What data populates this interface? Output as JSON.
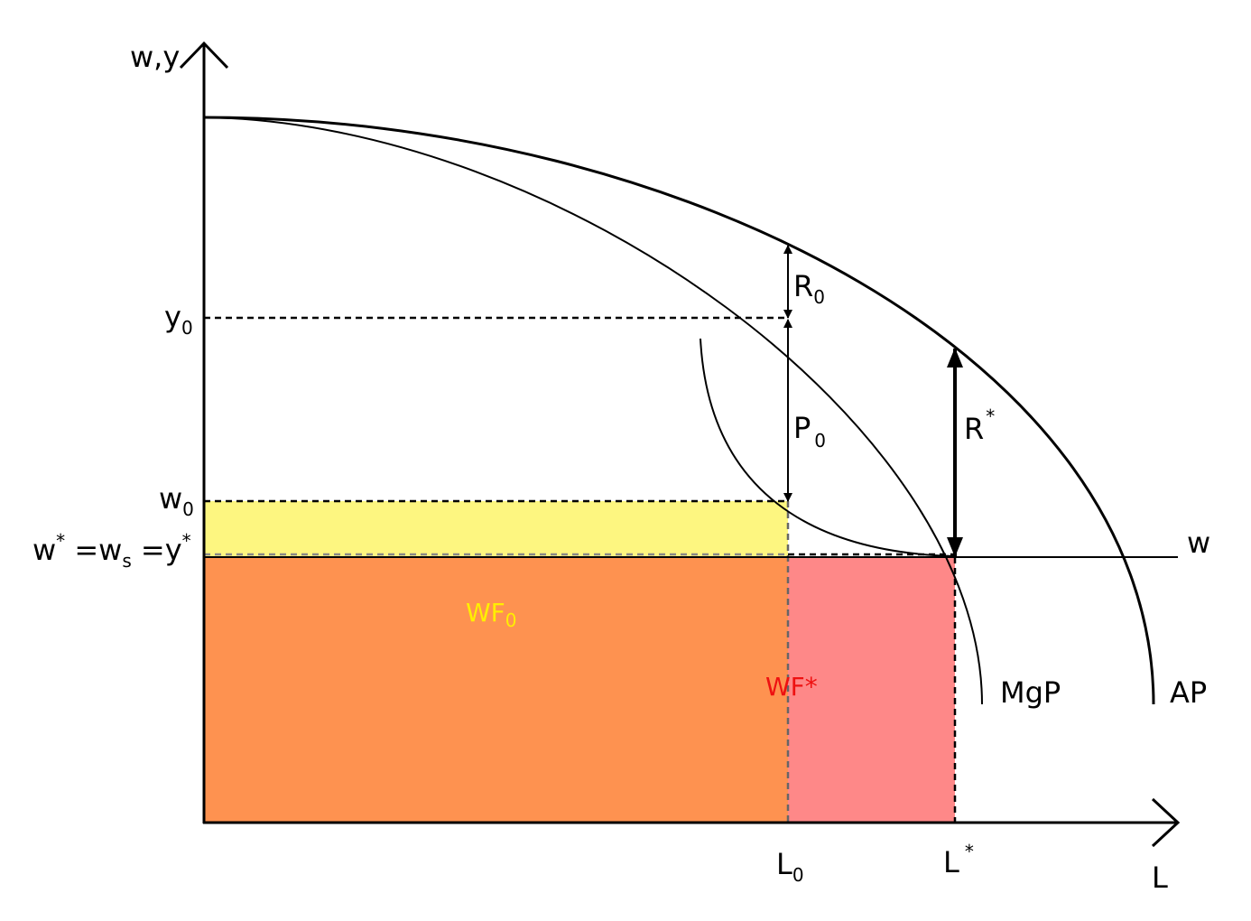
{
  "colors": {
    "wf0_band": "#fdf680",
    "wf_common": "#fe9250",
    "wf_star_extra": "#fe8888",
    "wf0_label": "#ffee00",
    "wfstar_label": "#ee1111"
  },
  "axes": {
    "y_label": "w,y",
    "x_label": "L"
  },
  "y_ticks": {
    "y0": {
      "main": "y",
      "sub": "0"
    },
    "w0": {
      "main": "w",
      "sub": "0"
    },
    "wstar": {
      "a": "w",
      "a_sup": "*",
      "b": " =w",
      "b_sub": "s",
      "c": " =y",
      "c_sup": "*"
    }
  },
  "x_ticks": {
    "L0": {
      "main": "L",
      "sub": "0"
    },
    "Lstar": {
      "main": "L",
      "sup": "*"
    }
  },
  "curves": {
    "w": "w",
    "mgp": "MgP",
    "ap": "AP"
  },
  "annotations": {
    "R0": {
      "main": "R",
      "sub": "0"
    },
    "P0": {
      "main": "P",
      "sub": "0"
    },
    "Rstar": {
      "main": "R",
      "sup": "*"
    },
    "WF0": {
      "main": "WF",
      "sub": "0"
    },
    "WFstar": "WF*"
  }
}
